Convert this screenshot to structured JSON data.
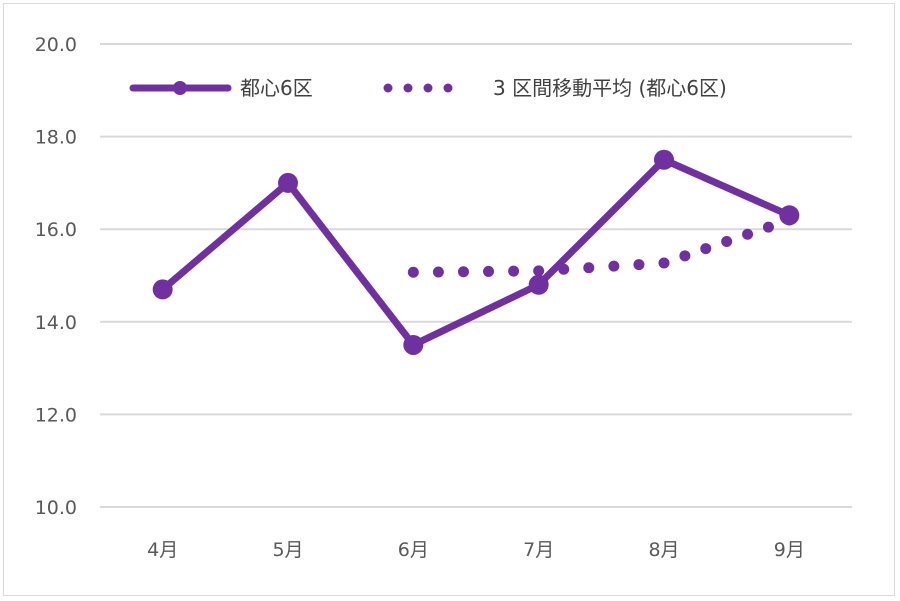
{
  "chart_data": {
    "type": "line",
    "categories": [
      "4月",
      "5月",
      "6月",
      "7月",
      "8月",
      "9月"
    ],
    "series": [
      {
        "name": "都心6区",
        "values": [
          14.7,
          17.0,
          13.5,
          14.8,
          17.5,
          16.3
        ],
        "color": "#7030a0",
        "style": "solid-markers"
      },
      {
        "name": "3 区間移動平均 (都心6区)",
        "values": [
          null,
          null,
          15.07,
          15.1,
          15.27,
          16.2
        ],
        "color": "#7030a0",
        "style": "dotted"
      }
    ],
    "y_ticks": [
      "10.0",
      "12.0",
      "14.0",
      "16.0",
      "18.0",
      "20.0"
    ],
    "ylim": [
      10,
      20
    ],
    "grid": true,
    "legend": "top-left"
  }
}
